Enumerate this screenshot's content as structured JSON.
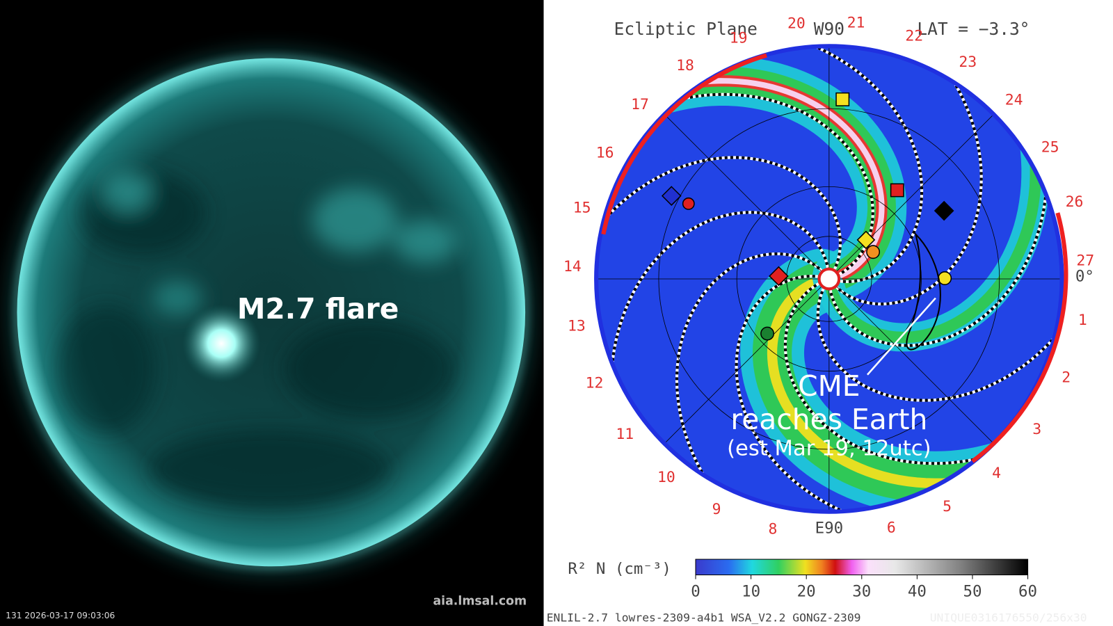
{
  "left_panel": {
    "label": "M2.7 flare",
    "timestamp": "131 2026-03-17 09:03:06",
    "credit": "aia.lmsal.com"
  },
  "right_panel": {
    "title": "Ecliptic Plane",
    "top_label": "W90",
    "latitude": "LAT = −3.3°",
    "bottom_label": "E90",
    "right_angle": "0°",
    "day_labels": [
      19,
      20,
      21,
      22,
      23,
      24,
      25,
      26,
      27,
      1,
      2,
      3,
      4,
      5,
      6,
      8,
      9,
      10,
      11,
      12,
      13,
      14,
      15,
      16,
      17,
      18
    ],
    "annotation": {
      "line1": "CME",
      "line2": "reaches Earth",
      "line3": "(est Mar 19, 12utc)"
    },
    "colorbar": {
      "label": "R² N (cm⁻³)",
      "ticks": [
        0,
        10,
        20,
        30,
        40,
        50,
        60
      ]
    },
    "footer": "ENLIL-2.7 lowres-2309-a4b1 WSA_V2.2 GONGZ-2309",
    "watermark": "UNIQUE0316176550/256x30"
  }
}
